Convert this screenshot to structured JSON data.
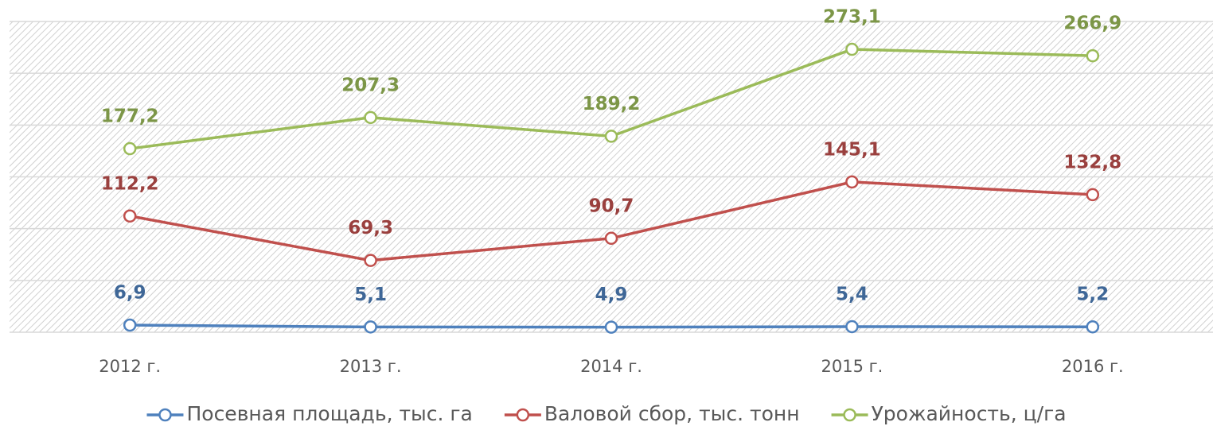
{
  "chart_data": {
    "type": "line",
    "categories": [
      "2012 г.",
      "2013 г.",
      "2014 г.",
      "2015 г.",
      "2016 г."
    ],
    "series": [
      {
        "name": "Посевная площадь, тыс. га",
        "color": "#4f81bd",
        "values": [
          6.9,
          5.1,
          4.9,
          5.4,
          5.2
        ],
        "value_labels": [
          "6,9",
          "5,1",
          "4,9",
          "5,4",
          "5,2"
        ]
      },
      {
        "name": "Валовой сбор, тыс. тонн",
        "color": "#c0504d",
        "values": [
          112.2,
          69.3,
          90.7,
          145.1,
          132.8
        ],
        "value_labels": [
          "112,2",
          "69,3",
          "90,7",
          "145,1",
          "132,8"
        ]
      },
      {
        "name": "Урожайность, ц/га",
        "color": "#9bbb59",
        "values": [
          177.2,
          207.3,
          189.2,
          273.1,
          266.9
        ],
        "value_labels": [
          "177,2",
          "207,3",
          "189,2",
          "273,1",
          "266,9"
        ]
      }
    ],
    "ylim": [
      0,
      300
    ],
    "yticks": [
      0,
      50,
      100,
      150,
      200,
      250,
      300
    ],
    "grid": true,
    "legend": "bottom"
  }
}
